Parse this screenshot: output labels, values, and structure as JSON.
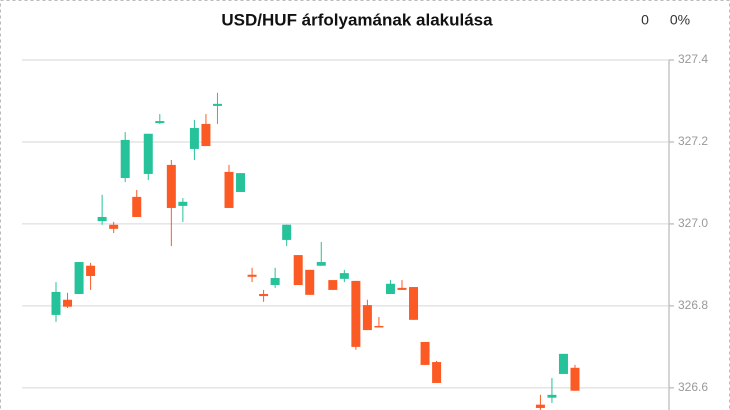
{
  "chart_data": {
    "type": "candlestick",
    "title": "USD/HUF árfolyamának alakulása",
    "change": "0",
    "change_percent": "0%",
    "up_color": "#26c29a",
    "down_color": "#fc5a24",
    "open": [
      326.778,
      326.815,
      326.829,
      326.898,
      327.007,
      326.998,
      327.112,
      327.066,
      327.122,
      327.246,
      327.144,
      327.044,
      327.183,
      327.244,
      327.288,
      327.127,
      327.078,
      326.876,
      326.829,
      326.851,
      326.961,
      326.924,
      326.888,
      326.898,
      326.863,
      326.866,
      326.861,
      326.802,
      326.751,
      326.829,
      326.844,
      326.846,
      326.712,
      326.663,
      null,
      null,
      null,
      null,
      null,
      null,
      null,
      null,
      326.559,
      326.576,
      326.634,
      326.649
    ],
    "high": [
      326.858,
      326.832,
      326.907,
      326.905,
      327.071,
      327.005,
      327.224,
      327.083,
      327.22,
      327.268,
      327.156,
      327.063,
      327.254,
      327.268,
      327.32,
      327.144,
      327.124,
      326.893,
      326.839,
      326.893,
      326.998,
      326.924,
      326.888,
      326.956,
      326.863,
      326.888,
      326.861,
      326.815,
      326.773,
      326.863,
      326.863,
      326.846,
      326.712,
      326.666,
      null,
      null,
      null,
      null,
      null,
      null,
      null,
      null,
      326.583,
      326.624,
      326.683,
      326.656
    ],
    "low": [
      326.761,
      326.795,
      326.829,
      326.839,
      326.998,
      326.978,
      327.102,
      327.017,
      327.107,
      327.244,
      326.946,
      327.005,
      327.156,
      327.19,
      327.244,
      327.039,
      327.078,
      326.858,
      326.81,
      326.844,
      326.946,
      326.851,
      326.827,
      326.898,
      326.839,
      326.858,
      326.693,
      326.741,
      326.749,
      326.829,
      326.839,
      326.766,
      326.656,
      326.612,
      null,
      null,
      null,
      null,
      null,
      null,
      null,
      null,
      326.546,
      326.563,
      326.634,
      326.593
    ],
    "close": [
      326.834,
      326.798,
      326.907,
      326.873,
      327.017,
      326.988,
      327.205,
      327.017,
      327.22,
      327.251,
      327.039,
      327.054,
      327.234,
      327.19,
      327.293,
      327.039,
      327.124,
      326.871,
      326.824,
      326.868,
      326.998,
      326.851,
      326.827,
      326.907,
      326.839,
      326.88,
      326.7,
      326.741,
      326.749,
      326.854,
      326.839,
      326.766,
      326.656,
      326.612,
      null,
      null,
      null,
      null,
      null,
      null,
      null,
      null,
      326.551,
      326.583,
      326.683,
      326.593
    ],
    "ylim": [
      326.546,
      327.4
    ],
    "yticks": [
      326.6,
      326.8,
      {
        "value": 327,
        "label": "327.0"
      },
      327.2,
      327.4
    ],
    "grid": true
  }
}
